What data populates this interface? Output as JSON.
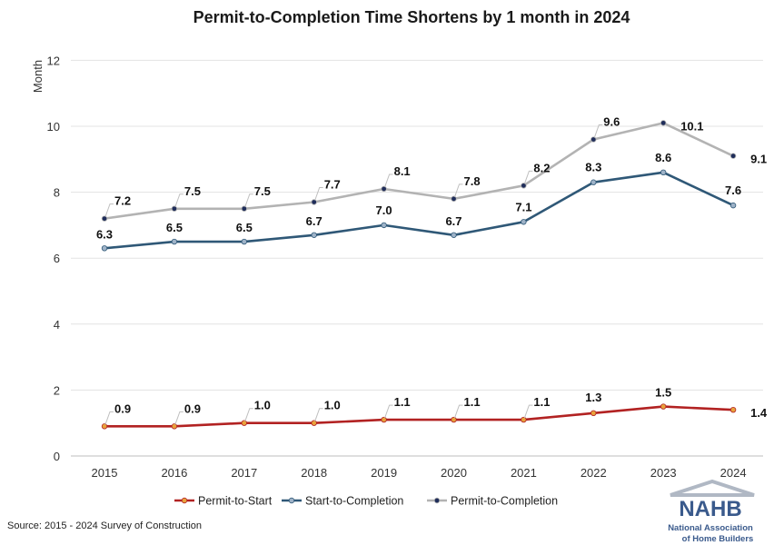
{
  "source_text": "Source: 2015 - 2024 Survey of Construction",
  "logo": {
    "wordmark": "NAHB",
    "line1": "National Association",
    "line2": "of Home Builders",
    "colors": {
      "primary": "#3a5a8c",
      "accent": "#c0392b",
      "roof": "#b0b8c4"
    }
  },
  "chart_data": {
    "type": "line",
    "title": "Permit-to-Completion Time Shortens by 1 month in 2024",
    "ylabel": "Month",
    "xlabel": "",
    "ylim": [
      0,
      12
    ],
    "yticks": [
      "0",
      "2",
      "4",
      "6",
      "8",
      "10",
      "12"
    ],
    "grid": true,
    "legend_position": "bottom",
    "categories": [
      "2015",
      "2016",
      "2017",
      "2018",
      "2019",
      "2020",
      "2021",
      "2022",
      "2023",
      "2024"
    ],
    "series": [
      {
        "name": "Permit-to-Start",
        "color": "#b22222",
        "marker_color": "#e8a33c",
        "values": [
          0.9,
          0.9,
          1.0,
          1.0,
          1.1,
          1.1,
          1.1,
          1.3,
          1.5,
          1.4
        ],
        "labels": [
          "0.9",
          "0.9",
          "1.0",
          "1.0",
          "1.1",
          "1.1",
          "1.1",
          "1.3",
          "1.5",
          "1.4"
        ]
      },
      {
        "name": "Start-to-Completion",
        "color": "#2f5877",
        "marker_color": "#9fb3c8",
        "values": [
          6.3,
          6.5,
          6.5,
          6.7,
          7.0,
          6.7,
          7.1,
          8.3,
          8.6,
          7.6
        ],
        "labels": [
          "6.3",
          "6.5",
          "6.5",
          "6.7",
          "7.0",
          "6.7",
          "7.1",
          "8.3",
          "8.6",
          "7.6"
        ]
      },
      {
        "name": "Permit-to-Completion",
        "color": "#b3b3b3",
        "marker_color": "#1f2d5a",
        "values": [
          7.2,
          7.5,
          7.5,
          7.7,
          8.1,
          7.8,
          8.2,
          9.6,
          10.1,
          9.1
        ],
        "labels": [
          "7.2",
          "7.5",
          "7.5",
          "7.7",
          "8.1",
          "7.8",
          "8.2",
          "9.6",
          "10.1",
          "9.1"
        ]
      }
    ]
  }
}
